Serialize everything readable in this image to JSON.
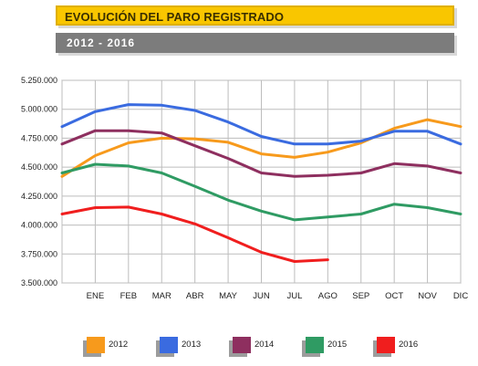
{
  "header": {
    "title": "EVOLUCIÓN DEL PARO REGISTRADO",
    "subtitle": "2012 - 2016"
  },
  "colors": {
    "title_bg": "#f9c600",
    "subtitle_bg": "#7c7c7c",
    "grid": "#bdbdbd"
  },
  "chart_data": {
    "type": "line",
    "categories": [
      "",
      "ENE",
      "FEB",
      "MAR",
      "ABR",
      "MAY",
      "JUN",
      "JUL",
      "AGO",
      "SEP",
      "OCT",
      "NOV",
      "DIC"
    ],
    "ylim": [
      3500000,
      5250000
    ],
    "yticks": [
      3500000,
      3750000,
      4000000,
      4250000,
      4500000,
      4750000,
      5000000,
      5250000
    ],
    "ytick_labels": [
      "3.500.000",
      "3.750.000",
      "4.000.000",
      "4.250.000",
      "4.500.000",
      "4.750.000",
      "5.000.000",
      "5.250.000"
    ],
    "grid": true,
    "legend_position": "bottom",
    "series": [
      {
        "name": "2012",
        "color": "#f79a1c",
        "values": [
          4420000,
          4600000,
          4710000,
          4750000,
          4745000,
          4715000,
          4615000,
          4585000,
          4630000,
          4710000,
          4835000,
          4910000,
          4850000
        ]
      },
      {
        "name": "2013",
        "color": "#3a6be0",
        "values": [
          4850000,
          4980000,
          5040000,
          5035000,
          4990000,
          4890000,
          4765000,
          4700000,
          4700000,
          4725000,
          4810000,
          4810000,
          4700000
        ]
      },
      {
        "name": "2014",
        "color": "#8e2f5f",
        "values": [
          4700000,
          4815000,
          4815000,
          4795000,
          4685000,
          4575000,
          4450000,
          4420000,
          4430000,
          4450000,
          4530000,
          4510000,
          4450000
        ]
      },
      {
        "name": "2015",
        "color": "#2f9b63",
        "values": [
          4450000,
          4525000,
          4510000,
          4450000,
          4335000,
          4215000,
          4120000,
          4045000,
          4070000,
          4095000,
          4180000,
          4150000,
          4095000
        ]
      },
      {
        "name": "2016",
        "color": "#f01e1e",
        "values": [
          4095000,
          4150000,
          4155000,
          4095000,
          4010000,
          3890000,
          3765000,
          3685000,
          3700000,
          null,
          null,
          null,
          null
        ]
      }
    ]
  }
}
